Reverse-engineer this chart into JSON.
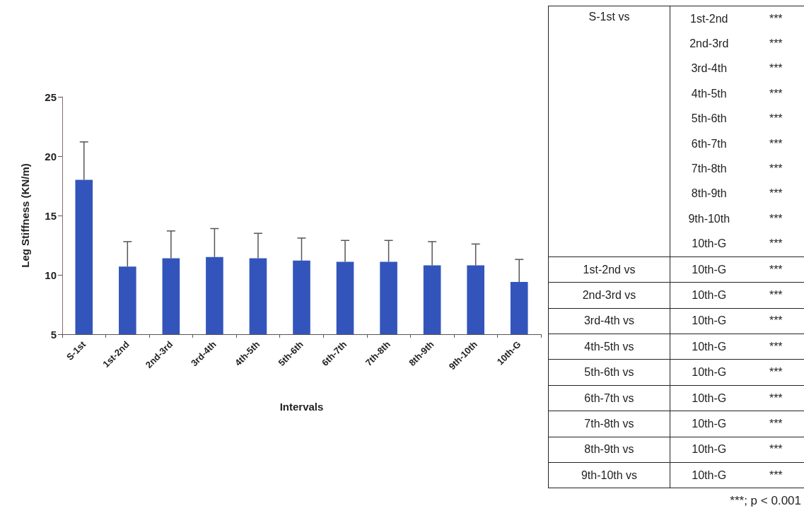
{
  "chart_data": [
    {
      "type": "bar",
      "xlabel": "Intervals",
      "ylabel": "Leg Stiffness (KN/m)",
      "categories": [
        "S-1st",
        "1st-2nd",
        "2nd-3rd",
        "3rd-4th",
        "4th-5th",
        "5th-6th",
        "6th-7th",
        "7th-8th",
        "8th-9th",
        "9th-10th",
        "10th-G"
      ],
      "values": [
        18.0,
        10.7,
        11.4,
        11.5,
        11.4,
        11.2,
        11.1,
        11.1,
        10.8,
        10.8,
        9.4
      ],
      "errors": [
        [
          18.0,
          21.2
        ],
        [
          10.7,
          12.8
        ],
        [
          11.4,
          13.7
        ],
        [
          11.5,
          13.9
        ],
        [
          11.4,
          13.5
        ],
        [
          11.2,
          13.1
        ],
        [
          11.1,
          12.9
        ],
        [
          11.1,
          12.9
        ],
        [
          10.8,
          12.8
        ],
        [
          10.8,
          12.6
        ],
        [
          9.4,
          11.3
        ]
      ],
      "color": "#3355bb",
      "ylim": [
        5,
        25
      ],
      "yticks": [
        5,
        10,
        15,
        20,
        25
      ],
      "grid": false
    },
    {
      "type": "other",
      "annotations": [
        "S-1st vs",
        "1st-2nd",
        "***",
        "2nd-3rd",
        "***",
        "3rd-4th",
        "***",
        "4th-5th",
        "***",
        "5th-6th",
        "***",
        "6th-7th",
        "***",
        "7th-8th",
        "***",
        "8th-9th",
        "***",
        "9th-10th",
        "***",
        "10th-G",
        "***",
        "1st-2nd vs",
        "10th-G",
        "***",
        "2nd-3rd vs",
        "10th-G",
        "***",
        "3rd-4th vs",
        "10th-G",
        "***",
        "4th-5th vs",
        "10th-G",
        "***",
        "5th-6th vs",
        "10th-G",
        "***",
        "6th-7th vs",
        "10th-G",
        "***",
        "7th-8th vs",
        "10th-G",
        "***",
        "8th-9th vs",
        "10th-G",
        "***",
        "9th-10th vs",
        "10th-G",
        "***",
        "***; p < 0.001"
      ]
    }
  ]
}
